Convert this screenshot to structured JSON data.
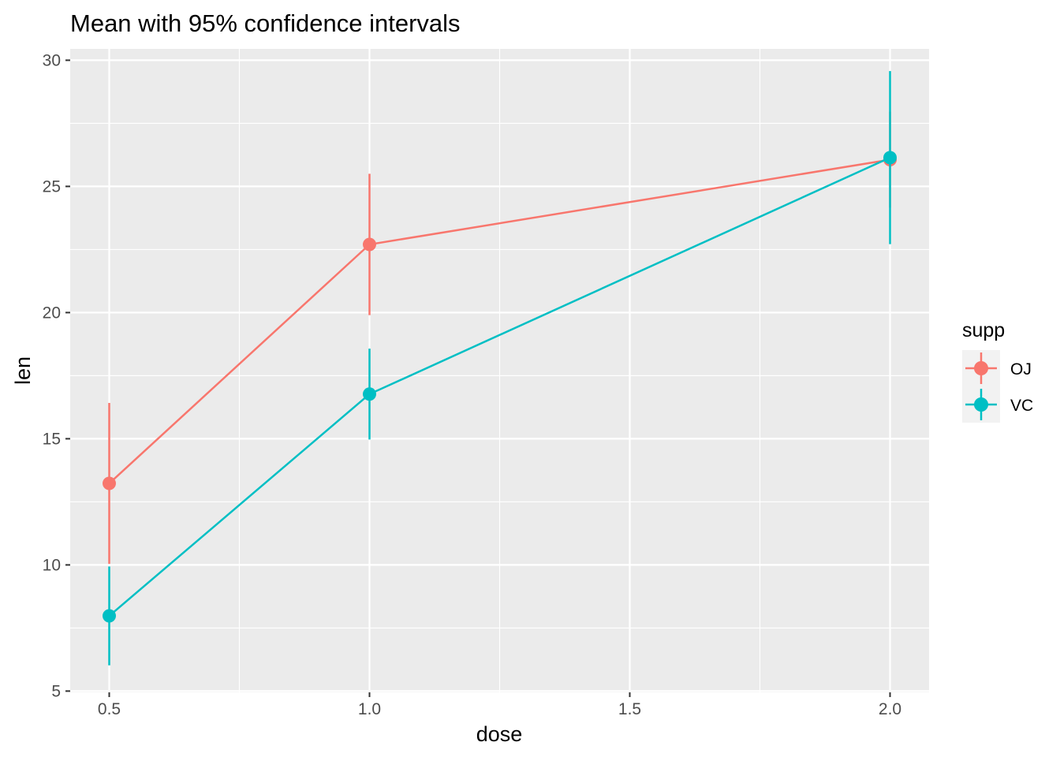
{
  "chart_data": {
    "type": "line",
    "title": "Mean with 95% confidence intervals",
    "xlabel": "dose",
    "ylabel": "len",
    "x": [
      0.5,
      1.0,
      2.0
    ],
    "xlim": [
      0.425,
      2.075
    ],
    "ylim": [
      4.95,
      30.45
    ],
    "x_ticks": [
      0.5,
      1.0,
      1.5,
      2.0
    ],
    "x_tick_labels": [
      "0.5",
      "1.0",
      "1.5",
      "2.0"
    ],
    "y_ticks": [
      5,
      10,
      15,
      20,
      25,
      30
    ],
    "y_tick_labels": [
      "5",
      "10",
      "15",
      "20",
      "25",
      "30"
    ],
    "grid": true,
    "legend": {
      "title": "supp",
      "position": "right"
    },
    "series": [
      {
        "name": "OJ",
        "color": "#F8766D",
        "values": [
          13.23,
          22.7,
          26.06
        ],
        "ci_low": [
          10.04,
          19.9,
          24.16
        ],
        "ci_high": [
          16.42,
          25.5,
          27.96
        ]
      },
      {
        "name": "VC",
        "color": "#00BFC4",
        "values": [
          7.98,
          16.77,
          26.14
        ],
        "ci_low": [
          6.02,
          14.97,
          22.71
        ],
        "ci_high": [
          9.94,
          18.57,
          29.57
        ]
      }
    ]
  }
}
